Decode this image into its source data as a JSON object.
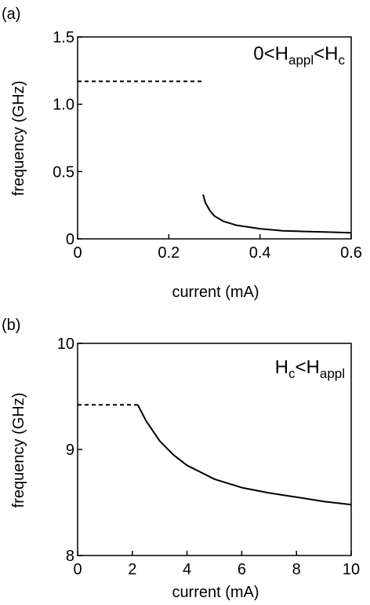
{
  "chart_data": [
    {
      "type": "line",
      "panel_label": "(a)",
      "xlabel": "current (mA)",
      "ylabel": "frequency (GHz)",
      "xlim": [
        0,
        0.6
      ],
      "ylim": [
        0,
        1.5
      ],
      "xticks": [
        0,
        0.2,
        0.4,
        0.6
      ],
      "xtick_labels": [
        "0",
        "0.2",
        "0.4",
        "0.6"
      ],
      "yticks": [
        0,
        0.5,
        1.0,
        1.5
      ],
      "ytick_labels": [
        "0",
        "0.5",
        "1.0",
        "1.5"
      ],
      "annotation": {
        "prefix": "0<H",
        "sub1": "appl",
        "mid": "<H",
        "sub2": "c"
      },
      "grid": false,
      "series": [
        {
          "style": "dashed",
          "x": [
            0,
            0.275
          ],
          "y": [
            1.17,
            1.17
          ]
        },
        {
          "style": "solid",
          "x": [
            0.275,
            0.28,
            0.29,
            0.3,
            0.32,
            0.35,
            0.38,
            0.4,
            0.45,
            0.5,
            0.55,
            0.6
          ],
          "y": [
            0.33,
            0.27,
            0.21,
            0.17,
            0.13,
            0.1,
            0.085,
            0.075,
            0.06,
            0.055,
            0.05,
            0.045
          ]
        }
      ]
    },
    {
      "type": "line",
      "panel_label": "(b)",
      "xlabel": "current (mA)",
      "ylabel": "frequency (GHz)",
      "xlim": [
        0,
        10
      ],
      "ylim": [
        8,
        10
      ],
      "xticks": [
        0,
        2,
        4,
        6,
        8,
        10
      ],
      "xtick_labels": [
        "0",
        "2",
        "4",
        "6",
        "8",
        "10"
      ],
      "yticks": [
        8,
        9,
        10
      ],
      "ytick_labels": [
        "8",
        "9",
        "10"
      ],
      "annotation": {
        "prefix": "H",
        "sub1": "c",
        "mid": "<H",
        "sub2": "appl"
      },
      "grid": false,
      "series": [
        {
          "style": "dashed",
          "x": [
            0,
            2.2
          ],
          "y": [
            9.42,
            9.42
          ]
        },
        {
          "style": "solid",
          "x": [
            2.2,
            2.5,
            3.0,
            3.5,
            4.0,
            5.0,
            6.0,
            7.0,
            8.0,
            9.0,
            10.0
          ],
          "y": [
            9.42,
            9.27,
            9.08,
            8.95,
            8.85,
            8.72,
            8.64,
            8.59,
            8.55,
            8.51,
            8.48
          ]
        }
      ]
    }
  ]
}
